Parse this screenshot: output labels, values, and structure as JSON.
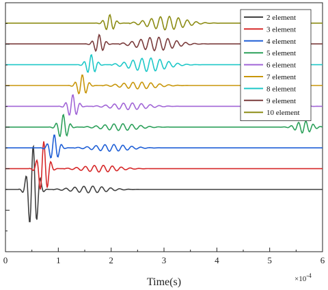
{
  "chart_data": {
    "type": "line",
    "title": "",
    "xlabel": "Time(s)",
    "ylabel": "",
    "x_multiplier_label": "×10",
    "x_multiplier_exponent": "-4",
    "xlim": [
      0,
      6
    ],
    "xticks": [
      "0",
      "1",
      "2",
      "3",
      "4",
      "5",
      "6"
    ],
    "grid": false,
    "legend_position": "top-right",
    "series": [
      {
        "name": "2 element",
        "color": "#404040",
        "arrival": 0.35
      },
      {
        "name": "3 element",
        "color": "#d62728",
        "arrival": 0.55
      },
      {
        "name": "4 element",
        "color": "#1f5fd6",
        "arrival": 0.75
      },
      {
        "name": "5 element",
        "color": "#2ca05a",
        "arrival": 0.92
      },
      {
        "name": "6 element",
        "color": "#a064d6",
        "arrival": 1.1
      },
      {
        "name": "7 element",
        "color": "#c8960a",
        "arrival": 1.28
      },
      {
        "name": "8 element",
        "color": "#1ec8c8",
        "arrival": 1.45
      },
      {
        "name": "9 element",
        "color": "#7a3c3c",
        "arrival": 1.6
      },
      {
        "name": "10 element",
        "color": "#8c8c14",
        "arrival": 1.8
      }
    ]
  }
}
